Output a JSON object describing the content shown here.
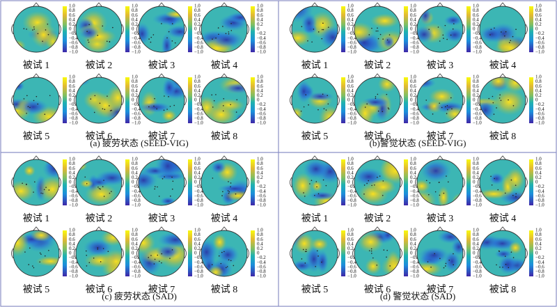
{
  "panels": [
    {
      "caption": "(a) 疲劳状态 (SEED-VIG)",
      "subjects": [
        "被试 1",
        "被试 2",
        "被试 3",
        "被试 4",
        "被试 5",
        "被试 6",
        "被试 7",
        "被试 8"
      ]
    },
    {
      "caption": "(b)警觉状态 (SEED-VIG)",
      "subjects": [
        "被试 1",
        "被试 2",
        "被试 3",
        "被试 4",
        "被试 5",
        "被试 6",
        "被试 7",
        "被试 8"
      ]
    },
    {
      "caption": "(c) 疲劳状态 (SAD)",
      "subjects": [
        "被试 1",
        "被试 2",
        "被试 3",
        "被试 4",
        "被试 5",
        "被试 6",
        "被试 7",
        "被试 8"
      ]
    },
    {
      "caption": "(d) 警觉状态 (SAD)",
      "subjects": [
        "被试 1",
        "被试 2",
        "被试 3",
        "被试 4",
        "被试 5",
        "被试 6",
        "被试 7",
        "被试 8"
      ]
    }
  ],
  "colorbar_ticks": [
    "1.0",
    "0.8",
    "0.6",
    "0.4",
    "0.2",
    "0",
    "−0.2",
    "−0.4",
    "−0.6",
    "−0.8",
    "−1.0"
  ]
}
